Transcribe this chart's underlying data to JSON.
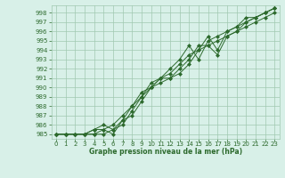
{
  "title": "Graphe pression niveau de la mer (hPa)",
  "xlabel_hours": [
    0,
    1,
    2,
    3,
    4,
    5,
    6,
    7,
    8,
    9,
    10,
    11,
    12,
    13,
    14,
    15,
    16,
    17,
    18,
    19,
    20,
    21,
    22,
    23
  ],
  "line1": [
    985.0,
    985.0,
    985.0,
    985.0,
    985.0,
    985.5,
    986.0,
    987.0,
    988.0,
    989.0,
    990.0,
    991.0,
    991.5,
    992.5,
    993.5,
    994.0,
    995.5,
    994.0,
    996.0,
    996.5,
    997.0,
    997.5,
    998.0,
    998.5
  ],
  "line2": [
    985.0,
    985.0,
    985.0,
    985.0,
    985.5,
    986.0,
    985.5,
    986.0,
    987.5,
    989.0,
    990.5,
    991.0,
    992.0,
    993.0,
    994.5,
    993.0,
    995.0,
    995.5,
    996.0,
    996.5,
    997.5,
    997.5,
    998.0,
    998.5
  ],
  "line3": [
    985.0,
    985.0,
    985.0,
    985.0,
    985.0,
    985.0,
    985.5,
    986.5,
    987.0,
    988.5,
    990.0,
    990.5,
    991.0,
    991.5,
    992.5,
    994.0,
    994.5,
    995.0,
    995.5,
    996.0,
    996.5,
    997.0,
    997.5,
    998.0
  ],
  "line4": [
    985.0,
    985.0,
    985.0,
    985.0,
    985.5,
    985.5,
    985.0,
    986.5,
    988.0,
    989.5,
    990.0,
    991.0,
    991.0,
    992.0,
    993.0,
    994.5,
    994.5,
    993.5,
    995.5,
    996.0,
    997.0,
    997.5,
    998.0,
    998.5
  ],
  "line_color": "#2d6a2d",
  "bg_color": "#d8f0e8",
  "grid_color": "#a0c8b0",
  "ylim": [
    984.5,
    998.8
  ],
  "yticks": [
    985,
    986,
    987,
    988,
    989,
    990,
    991,
    992,
    993,
    994,
    995,
    996,
    997,
    998
  ],
  "marker": "D",
  "marker_size": 2,
  "linewidth": 0.7,
  "tick_fontsize": 5,
  "xlabel_fontsize": 5.5
}
